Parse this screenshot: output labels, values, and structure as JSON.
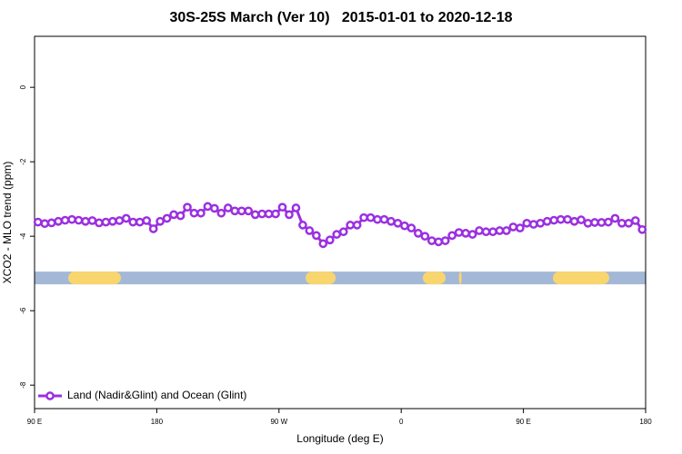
{
  "chart_data": {
    "type": "line",
    "title": "30S-25S March (Ver 10)   2015-01-01 to 2020-12-18",
    "xlabel": "Longitude (deg E)",
    "ylabel": "XCO2 - MLO trend (ppm)",
    "xlim": [
      90,
      540
    ],
    "ylim": [
      -8.63,
      1.37
    ],
    "xticks": [
      {
        "value": 90,
        "label": "90 E"
      },
      180,
      {
        "value": 270,
        "label": "90 W"
      },
      {
        "value": 360,
        "label": "0"
      },
      {
        "value": 450,
        "label": "90 E"
      },
      {
        "value": 540,
        "label": "180"
      }
    ],
    "yticks": [
      0,
      -2,
      -4,
      -6,
      -8
    ],
    "legend": "bottom-left",
    "x": [
      92.5,
      97.5,
      102.5,
      107.5,
      112.5,
      117.5,
      122.5,
      127.5,
      132.5,
      137.5,
      142.5,
      147.5,
      152.5,
      157.5,
      162.5,
      167.5,
      172.5,
      177.5,
      182.5,
      187.5,
      192.5,
      197.5,
      202.5,
      207.5,
      212.5,
      217.5,
      222.5,
      227.5,
      232.5,
      237.5,
      242.5,
      247.5,
      252.5,
      257.5,
      262.5,
      267.5,
      272.5,
      277.5,
      282.5,
      287.5,
      292.5,
      297.5,
      302.5,
      307.5,
      312.5,
      317.5,
      322.5,
      327.5,
      332.5,
      337.5,
      342.5,
      347.5,
      352.5,
      357.5,
      362.5,
      367.5,
      372.5,
      377.5,
      382.5,
      387.5,
      392.5,
      397.5,
      402.5,
      407.5,
      412.5,
      417.5,
      422.5,
      427.5,
      432.5,
      437.5,
      442.5,
      447.5,
      452.5,
      457.5,
      462.5,
      467.5,
      472.5,
      477.5,
      482.5,
      487.5,
      492.5,
      497.5,
      502.5,
      507.5,
      512.5,
      517.5,
      522.5,
      527.5,
      532.5,
      537.5
    ],
    "series": [
      {
        "name": "Land (Nadir&Glint) and Ocean (Glint)",
        "color": "#9b30e0",
        "values": [
          -3.62,
          -3.66,
          -3.64,
          -3.6,
          -3.57,
          -3.55,
          -3.57,
          -3.6,
          -3.58,
          -3.64,
          -3.62,
          -3.6,
          -3.58,
          -3.52,
          -3.62,
          -3.62,
          -3.58,
          -3.8,
          -3.6,
          -3.52,
          -3.42,
          -3.45,
          -3.22,
          -3.38,
          -3.38,
          -3.2,
          -3.25,
          -3.38,
          -3.24,
          -3.32,
          -3.32,
          -3.32,
          -3.42,
          -3.4,
          -3.4,
          -3.4,
          -3.22,
          -3.42,
          -3.24,
          -3.7,
          -3.85,
          -3.98,
          -4.2,
          -4.1,
          -3.95,
          -3.88,
          -3.7,
          -3.7,
          -3.5,
          -3.5,
          -3.55,
          -3.55,
          -3.6,
          -3.65,
          -3.72,
          -3.78,
          -3.92,
          -4.0,
          -4.12,
          -4.15,
          -4.12,
          -3.98,
          -3.9,
          -3.92,
          -3.95,
          -3.85,
          -3.88,
          -3.88,
          -3.85,
          -3.85,
          -3.75,
          -3.78,
          -3.65,
          -3.68,
          -3.65,
          -3.6,
          -3.57,
          -3.55,
          -3.55,
          -3.6,
          -3.56,
          -3.65,
          -3.63,
          -3.63,
          -3.62,
          -3.52,
          -3.65,
          -3.65,
          -3.58,
          -3.82
        ]
      }
    ],
    "surface_bar": {
      "y": -5.12,
      "ocean_color": "#a3b8d6",
      "land_color": "#f9d56e",
      "land": [
        [
          114.8,
          153.6
        ],
        [
          289.6,
          311.7
        ],
        [
          375.9,
          392.7
        ],
        [
          402.5,
          404.5
        ],
        [
          471.7,
          513.2
        ]
      ]
    }
  }
}
